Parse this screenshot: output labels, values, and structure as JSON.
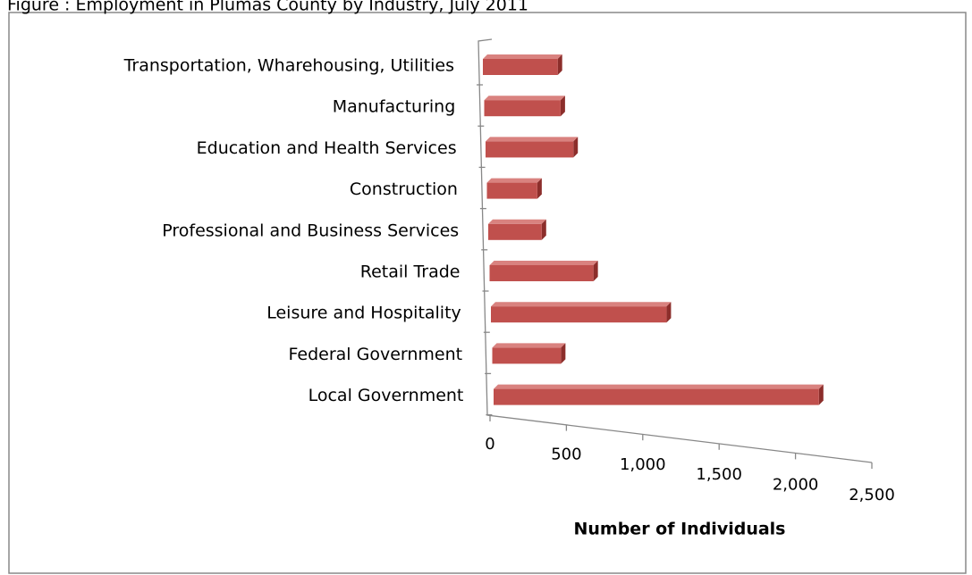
{
  "chart_data": {
    "type": "bar3d",
    "title": "Figure : Employment in Plumas County by Industry, July 2011",
    "x_label": "Number of Individuals",
    "categories": [
      "Transportation, Wharehousing, Utilities",
      "Manufacturing",
      "Education and Health Services",
      "Construction",
      "Professional and Business Services",
      "Retail Trade",
      "Leisure and Hospitality",
      "Federal Government",
      "Local Government"
    ],
    "values": [
      490,
      500,
      575,
      330,
      350,
      680,
      1150,
      450,
      2130
    ],
    "color": "#c0504d",
    "xlim": [
      0,
      2500
    ],
    "xticks": [
      0,
      500,
      {
        "value": 1000,
        "label": "1,000"
      },
      {
        "value": 1500,
        "label": "1,500"
      },
      {
        "value": 2000,
        "label": "2,000"
      },
      {
        "value": 2500,
        "label": "2,500"
      }
    ]
  }
}
